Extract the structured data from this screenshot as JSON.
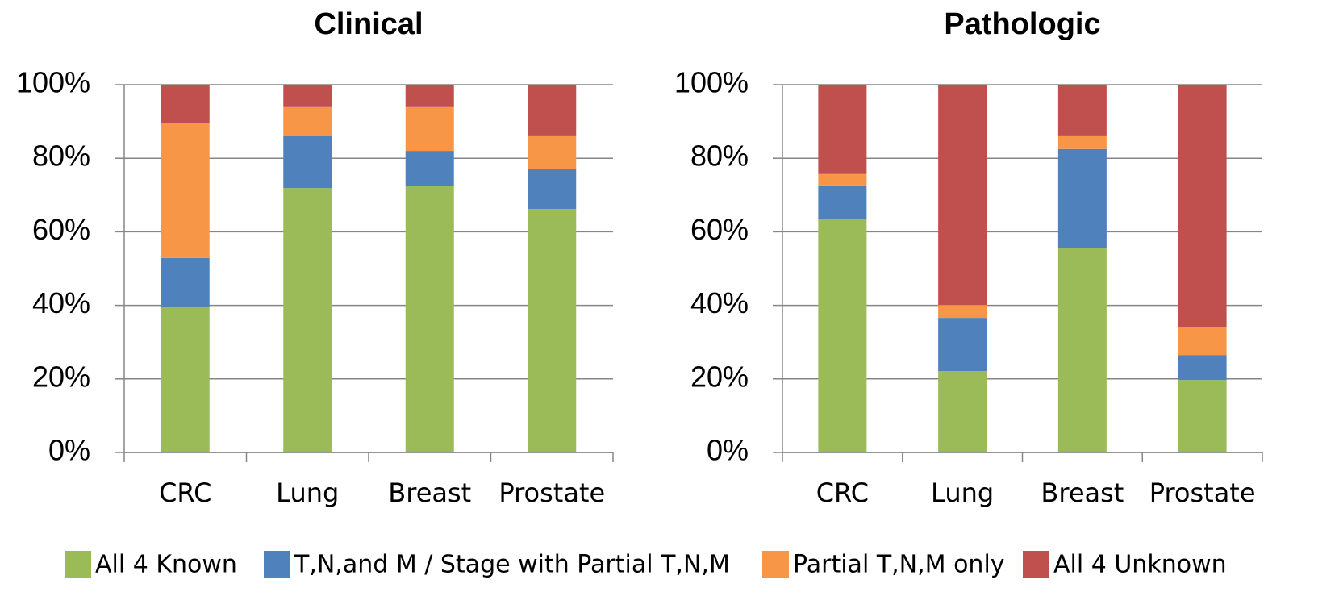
{
  "chart_data": [
    {
      "type": "bar",
      "stacked": true,
      "title": "Clinical",
      "grid": true,
      "categories": [
        "CRC",
        "Lung",
        "Breast",
        "Prostate"
      ],
      "ylim": [
        0,
        100
      ],
      "yticks": [
        {
          "value": 0,
          "label": "0%"
        },
        {
          "value": 20,
          "label": "20%"
        },
        {
          "value": 40,
          "label": "40%"
        },
        {
          "value": 60,
          "label": "60%"
        },
        {
          "value": 80,
          "label": "80%"
        },
        {
          "value": 100,
          "label": "100%"
        }
      ],
      "series": [
        {
          "name": "All 4 Known",
          "color": "#9bbb59",
          "values": [
            39.5,
            71.9,
            72.4,
            66.2
          ]
        },
        {
          "name": "T,N,and M / Stage with Partial T,N,M",
          "color": "#4f81bd",
          "values": [
            13.4,
            14.1,
            9.6,
            10.8
          ]
        },
        {
          "name": "Partial T,N,M only",
          "color": "#f79646",
          "values": [
            36.6,
            7.9,
            11.9,
            9.2
          ]
        },
        {
          "name": "All 4 Unknown",
          "color": "#c0504d",
          "values": [
            10.5,
            6.1,
            6.1,
            13.8
          ]
        }
      ]
    },
    {
      "type": "bar",
      "stacked": true,
      "title": "Pathologic",
      "grid": true,
      "categories": [
        "CRC",
        "Lung",
        "Breast",
        "Prostate"
      ],
      "ylim": [
        0,
        100
      ],
      "yticks": [
        {
          "value": 0,
          "label": "0%"
        },
        {
          "value": 20,
          "label": "20%"
        },
        {
          "value": 40,
          "label": "40%"
        },
        {
          "value": 60,
          "label": "60%"
        },
        {
          "value": 80,
          "label": "80%"
        },
        {
          "value": 100,
          "label": "100%"
        }
      ],
      "series": [
        {
          "color": "#9bbb59",
          "values": [
            63.4,
            22.1,
            55.7,
            19.7
          ]
        },
        {
          "color": "#4f81bd",
          "values": [
            9.2,
            14.5,
            26.8,
            6.8
          ]
        },
        {
          "color": "#f79646",
          "values": [
            3.1,
            3.5,
            3.7,
            7.7
          ]
        },
        {
          "color": "#c0504d",
          "values": [
            24.3,
            59.9,
            13.8,
            65.8
          ]
        }
      ]
    }
  ]
}
